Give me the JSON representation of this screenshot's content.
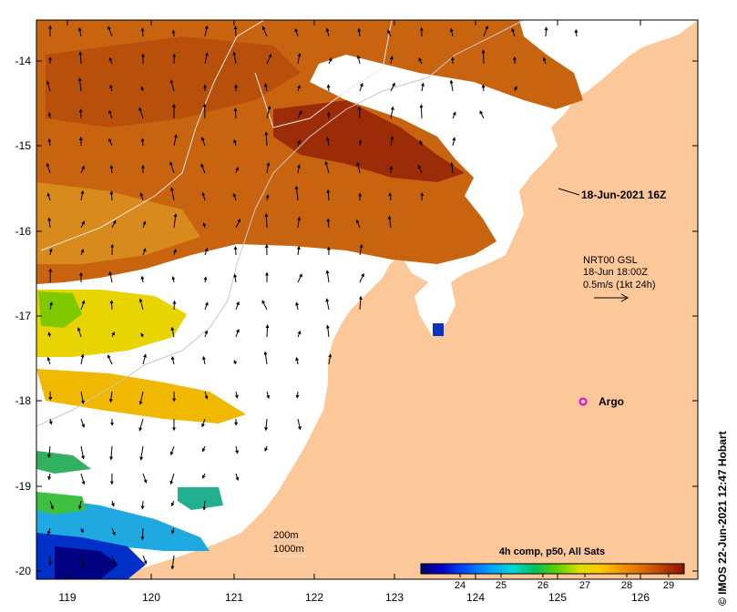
{
  "map": {
    "lat_ticks": [
      "-14",
      "-15",
      "-16",
      "-17",
      "-18",
      "-19",
      "-20"
    ],
    "lon_ticks": [
      "119",
      "120",
      "121",
      "122",
      "123",
      "124",
      "125",
      "126"
    ],
    "land_color": "#fcc89a",
    "water_nodata_color": "#ffffff"
  },
  "annotations": {
    "timestamp": "18-Jun-2021 16Z",
    "current_model": "NRT00 GSL",
    "current_time": "18-Jun 18:00Z",
    "current_scale": "0.5m/s (1kt 24h)",
    "argo_label": "Argo",
    "contour_200": "200m",
    "contour_1000": "1000m"
  },
  "colorbar": {
    "title": "4h comp, p50, All Sats",
    "ticks": [
      "24",
      "25",
      "26",
      "27",
      "28",
      "29"
    ],
    "units_range": [
      23.2,
      29.6
    ],
    "colors": [
      "#00006e",
      "#0000c8",
      "#0050ff",
      "#00a0ff",
      "#00d8d0",
      "#00c060",
      "#60d000",
      "#d8e000",
      "#ffc800",
      "#f09000",
      "#d86000",
      "#b03000",
      "#8c1400"
    ]
  },
  "credit": "© IMOS 22-Jun-2021 12:47 Hobart"
}
